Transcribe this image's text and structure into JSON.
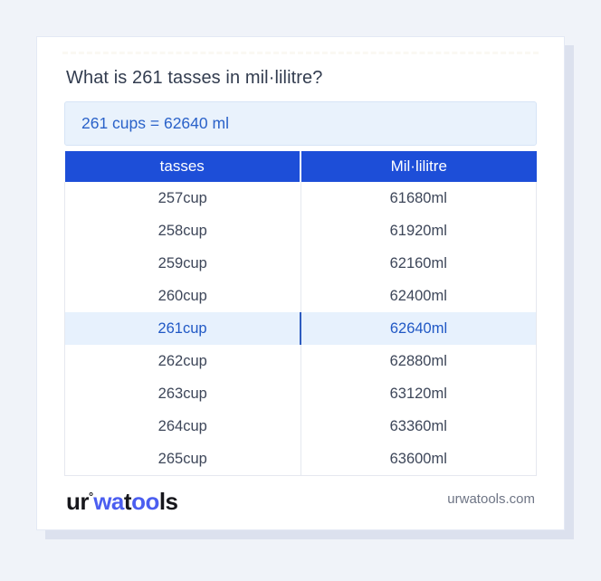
{
  "title": "What is 261 tasses in mil·lilitre?",
  "result": {
    "text": "261 cups = 62640 ml"
  },
  "table": {
    "columns": [
      "tasses",
      "Mil·lilitre"
    ],
    "rows": [
      {
        "tasses": "257cup",
        "ml": "61680ml"
      },
      {
        "tasses": "258cup",
        "ml": "61920ml"
      },
      {
        "tasses": "259cup",
        "ml": "62160ml"
      },
      {
        "tasses": "260cup",
        "ml": "62400ml"
      },
      {
        "tasses": "261cup",
        "ml": "62640ml"
      },
      {
        "tasses": "262cup",
        "ml": "62880ml"
      },
      {
        "tasses": "263cup",
        "ml": "63120ml"
      },
      {
        "tasses": "264cup",
        "ml": "63360ml"
      },
      {
        "tasses": "265cup",
        "ml": "63600ml"
      }
    ],
    "highlight_index": 4
  },
  "footer": {
    "logo_parts": [
      {
        "text": "ur",
        "color": "#17171c"
      },
      {
        "text": "°",
        "color": "#17171c",
        "sup": true
      },
      {
        "text": "wa",
        "color": "#4b5ef0"
      },
      {
        "text": "t",
        "color": "#17171c"
      },
      {
        "text": "oo",
        "color": "#4b5ef0"
      },
      {
        "text": "ls",
        "color": "#17171c"
      }
    ],
    "domain": "urwatools.com"
  },
  "colors": {
    "header_blue": "#1d4ed8",
    "highlight_bg": "#e7f1fd",
    "highlight_text": "#2058c5",
    "result_bg": "#e9f2fc",
    "result_border": "#d6e4f6",
    "result_text": "#2a62c9",
    "page_bg": "#f0f3f9",
    "row_text": "#3d4659",
    "domain_text": "#6e7585"
  }
}
